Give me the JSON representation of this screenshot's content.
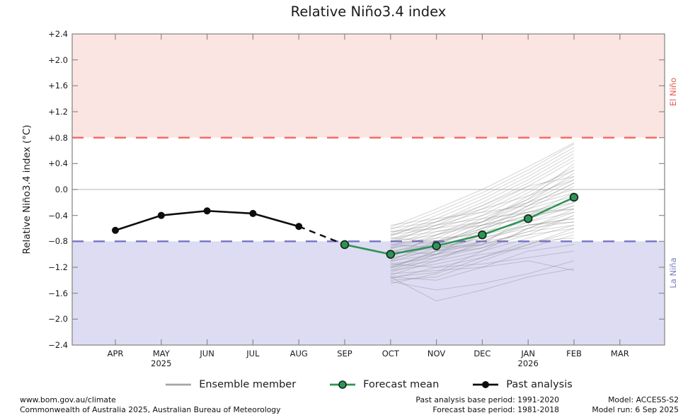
{
  "title": "Relative Niño3.4 index",
  "y_axis": {
    "label": "Relative Niño3.4 index (°C)",
    "ticks": [
      {
        "value": 2.4,
        "label": "+2.4"
      },
      {
        "value": 2.0,
        "label": "+2.0"
      },
      {
        "value": 1.6,
        "label": "+1.6"
      },
      {
        "value": 1.2,
        "label": "+1.2"
      },
      {
        "value": 0.8,
        "label": "+0.8"
      },
      {
        "value": 0.4,
        "label": "+0.4"
      },
      {
        "value": 0.0,
        "label": "0.0"
      },
      {
        "value": -0.4,
        "label": "−0.4"
      },
      {
        "value": -0.8,
        "label": "−0.8"
      },
      {
        "value": -1.2,
        "label": "−1.2"
      },
      {
        "value": -1.6,
        "label": "−1.6"
      },
      {
        "value": -2.0,
        "label": "−2.0"
      },
      {
        "value": -2.4,
        "label": "−2.4"
      }
    ]
  },
  "x_axis": {
    "months": [
      "APR",
      "MAY",
      "JUN",
      "JUL",
      "AUG",
      "SEP",
      "OCT",
      "NOV",
      "DEC",
      "JAN",
      "FEB",
      "MAR"
    ],
    "year_labels": [
      {
        "month_index": 1,
        "label": "2025"
      },
      {
        "month_index": 9,
        "label": "2026"
      }
    ]
  },
  "bands": {
    "el_nino": {
      "label": "El Niño",
      "threshold": 0.8,
      "fill": "#fbe5e2",
      "line_color": "#f4665e",
      "label_color": "#e25b54"
    },
    "la_nina": {
      "label": "La Niña",
      "threshold": -0.8,
      "fill": "#dddcf2",
      "line_color": "#7474c6",
      "label_color": "#7b7bc0"
    }
  },
  "chart_data": {
    "type": "line",
    "x": [
      "APR",
      "MAY",
      "JUN",
      "JUL",
      "AUG",
      "SEP",
      "OCT",
      "NOV",
      "DEC",
      "JAN",
      "FEB",
      "MAR"
    ],
    "ylim": [
      -2.4,
      2.4
    ],
    "grid": "zero-line-only",
    "legend_position": "bottom",
    "series": [
      {
        "name": "Past analysis",
        "color": "#0d0d0d",
        "marker": "filled-circle",
        "months": [
          "APR",
          "MAY",
          "JUN",
          "JUL",
          "AUG"
        ],
        "values": [
          -0.63,
          -0.4,
          -0.33,
          -0.37,
          -0.57
        ]
      },
      {
        "name": "Forecast mean",
        "color": "#2d9457",
        "marker": "edged-circle",
        "months": [
          "SEP",
          "OCT",
          "NOV",
          "DEC",
          "JAN",
          "FEB"
        ],
        "values": [
          -0.85,
          -1.0,
          -0.87,
          -0.7,
          -0.45,
          -0.12
        ]
      }
    ],
    "connector": {
      "style": "dashed",
      "color": "#0d0d0d",
      "from_month": "AUG",
      "from_value": -0.57,
      "to_month": "SEP",
      "to_value": -0.85
    },
    "ensemble": {
      "name": "Ensemble member",
      "color": "rgba(122,122,122,0.32)",
      "months": [
        "OCT",
        "NOV",
        "DEC",
        "JAN",
        "FEB"
      ],
      "members": [
        [
          -1.4,
          -1.35,
          -1.1,
          -0.85,
          -0.6
        ],
        [
          -1.38,
          -1.2,
          -1.15,
          -1.05,
          -0.95
        ],
        [
          -1.35,
          -1.28,
          -0.95,
          -0.6,
          -0.3
        ],
        [
          -1.32,
          -1.1,
          -0.8,
          -0.55,
          -0.45
        ],
        [
          -1.3,
          -1.25,
          -1.2,
          -1.1,
          -1.25
        ],
        [
          -1.28,
          -1.05,
          -0.85,
          -0.4,
          -0.05
        ],
        [
          -1.25,
          -1.15,
          -1.0,
          -0.9,
          -0.7
        ],
        [
          -1.22,
          -0.95,
          -0.7,
          -0.45,
          -0.2
        ],
        [
          -1.2,
          -1.1,
          -0.95,
          -0.75,
          -0.55
        ],
        [
          -1.18,
          -1.0,
          -0.6,
          -0.25,
          0.1
        ],
        [
          -1.15,
          -1.05,
          -0.9,
          -0.6,
          -0.35
        ],
        [
          -1.12,
          -0.9,
          -0.75,
          -0.55,
          -0.5
        ],
        [
          -1.1,
          -1.0,
          -0.7,
          -0.3,
          0.05
        ],
        [
          -1.08,
          -0.85,
          -0.55,
          -0.2,
          0.15
        ],
        [
          -1.05,
          -0.95,
          -0.8,
          -0.7,
          -0.6
        ],
        [
          -1.02,
          -0.8,
          -0.5,
          -0.1,
          0.3
        ],
        [
          -1.0,
          -0.9,
          -0.85,
          -0.65,
          -0.4
        ],
        [
          -0.98,
          -0.75,
          -0.45,
          -0.15,
          0.2
        ],
        [
          -0.95,
          -0.85,
          -0.6,
          -0.4,
          -0.15
        ],
        [
          -0.92,
          -0.7,
          -0.55,
          -0.35,
          -0.3
        ],
        [
          -0.9,
          -0.8,
          -0.65,
          -0.25,
          0.1
        ],
        [
          -0.88,
          -0.6,
          -0.3,
          0.05,
          0.45
        ],
        [
          -0.85,
          -0.75,
          -0.7,
          -0.55,
          -0.45
        ],
        [
          -0.82,
          -0.55,
          -0.25,
          0.1,
          0.5
        ],
        [
          -0.8,
          -0.7,
          -0.5,
          -0.3,
          -0.1
        ],
        [
          -0.78,
          -0.5,
          -0.2,
          0.15,
          0.55
        ],
        [
          -0.75,
          -0.65,
          -0.55,
          -0.45,
          -0.25
        ],
        [
          -0.72,
          -0.45,
          -0.15,
          0.2,
          0.6
        ],
        [
          -0.7,
          -0.6,
          -0.4,
          -0.2,
          0.0
        ],
        [
          -0.68,
          -0.4,
          -0.1,
          0.25,
          0.65
        ],
        [
          -0.65,
          -0.55,
          -0.45,
          -0.35,
          -0.2
        ],
        [
          -0.62,
          -0.35,
          -0.05,
          0.3,
          0.7
        ],
        [
          -0.6,
          -0.5,
          -0.3,
          -0.1,
          0.15
        ],
        [
          -0.58,
          -0.3,
          0.0,
          0.35,
          0.72
        ],
        [
          -0.55,
          -0.45,
          -0.35,
          -0.25,
          -0.05
        ],
        [
          -1.45,
          -1.3,
          -1.05,
          -0.8,
          -0.75
        ],
        [
          -1.35,
          -1.4,
          -1.2,
          -0.95,
          -0.85
        ],
        [
          -1.15,
          -1.2,
          -1.05,
          -0.85,
          -0.65
        ],
        [
          -0.95,
          -1.0,
          -0.8,
          -0.5,
          -0.25
        ],
        [
          -0.85,
          -0.9,
          -0.75,
          -0.6,
          -0.5
        ],
        [
          -1.05,
          -0.7,
          -0.4,
          -0.05,
          0.35
        ],
        [
          -0.75,
          -0.8,
          -0.6,
          -0.4,
          -0.3
        ],
        [
          -1.25,
          -1.0,
          -0.9,
          -0.7,
          -0.4
        ],
        [
          -0.9,
          -0.65,
          -0.5,
          -0.2,
          0.25
        ],
        [
          -1.1,
          -0.8,
          -0.65,
          -0.5,
          -0.35
        ],
        [
          -0.65,
          -0.6,
          -0.5,
          -0.15,
          0.4
        ],
        [
          -1.0,
          -0.85,
          -0.55,
          -0.35,
          -0.15
        ],
        [
          -0.8,
          -0.55,
          -0.35,
          0.0,
          0.3
        ],
        [
          -1.2,
          -0.95,
          -0.85,
          -0.65,
          -0.55
        ],
        [
          -0.7,
          -0.5,
          -0.25,
          0.05,
          0.2
        ],
        [
          -1.42,
          -1.55,
          -1.45,
          -1.3,
          -1.1
        ],
        [
          -1.35,
          -1.72,
          -1.55,
          -1.35,
          -1.22
        ]
      ]
    },
    "colors": {
      "zero_line": "#c4c4c4",
      "frame": "#8a8a8a",
      "past": "#0d0d0d",
      "forecast": "#2d9457",
      "forecast_marker_edge": "#16271c",
      "legend_ensemble": "#a6a6a6"
    }
  },
  "legend": [
    {
      "label": "Ensemble member"
    },
    {
      "label": "Forecast mean"
    },
    {
      "label": "Past analysis"
    }
  ],
  "footer": {
    "left": [
      "www.bom.gov.au/climate",
      "Commonwealth of Australia 2025, Australian Bureau of Meteorology"
    ],
    "center": [
      "Past analysis base period: 1991-2020",
      "Forecast base period: 1981-2018"
    ],
    "right": [
      "Model: ACCESS-S2",
      "Model run: 6 Sep 2025"
    ]
  }
}
